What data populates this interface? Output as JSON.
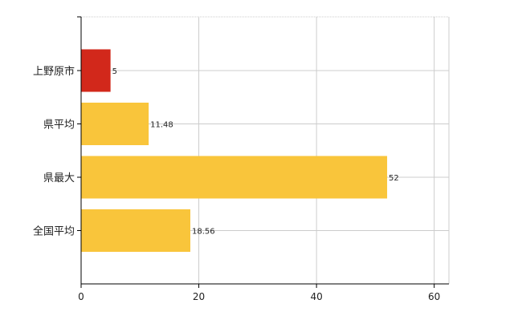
{
  "chart_data": {
    "type": "bar",
    "orientation": "horizontal",
    "categories": [
      "上野原市",
      "県平均",
      "県最大",
      "全国平均"
    ],
    "values": [
      5,
      11.48,
      52,
      18.56
    ],
    "data_labels": [
      "5",
      "11.48",
      "52",
      "18.56"
    ],
    "bar_colors": [
      "#d2281b",
      "#f9c53b",
      "#f9c53b",
      "#f9c53b"
    ],
    "xlim": [
      0,
      62.5
    ],
    "xticks": [
      0,
      20,
      40,
      60
    ],
    "xtick_labels": [
      "0",
      "20",
      "40",
      "60"
    ],
    "grid": true,
    "legend": false
  }
}
